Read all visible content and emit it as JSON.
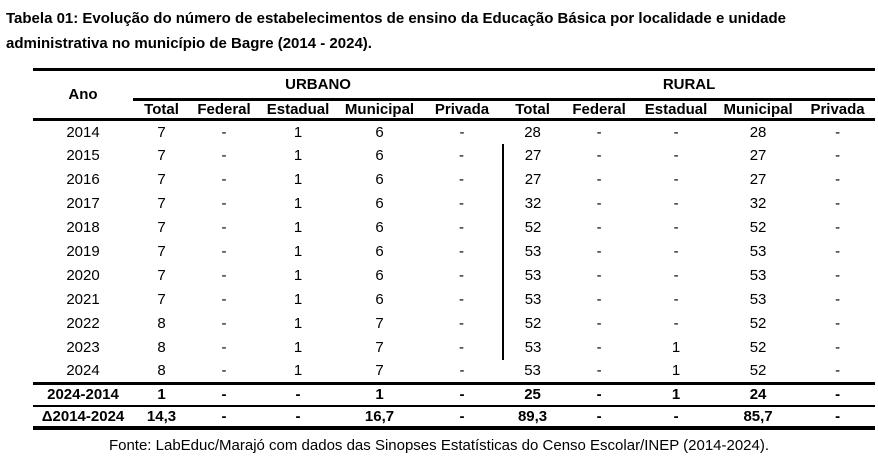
{
  "title": "Tabela 01: Evolução do número de estabelecimentos de ensino da Educação Básica por localidade e unidade administrativa no município de Bagre (2014 - 2024).",
  "table": {
    "year_header": "Ano",
    "groups": [
      {
        "label": "URBANO"
      },
      {
        "label": "RURAL"
      }
    ],
    "sub_headers": [
      "Total",
      "Federal",
      "Estadual",
      "Municipal",
      "Privada"
    ],
    "rows": [
      {
        "year": "2014",
        "values": [
          "7",
          "-",
          "1",
          "6",
          "-",
          "28",
          "-",
          "-",
          "28",
          "-"
        ]
      },
      {
        "year": "2015",
        "values": [
          "7",
          "-",
          "1",
          "6",
          "-",
          "27",
          "-",
          "-",
          "27",
          "-"
        ]
      },
      {
        "year": "2016",
        "values": [
          "7",
          "-",
          "1",
          "6",
          "-",
          "27",
          "-",
          "-",
          "27",
          "-"
        ]
      },
      {
        "year": "2017",
        "values": [
          "7",
          "-",
          "1",
          "6",
          "-",
          "32",
          "-",
          "-",
          "32",
          "-"
        ]
      },
      {
        "year": "2018",
        "values": [
          "7",
          "-",
          "1",
          "6",
          "-",
          "52",
          "-",
          "-",
          "52",
          "-"
        ]
      },
      {
        "year": "2019",
        "values": [
          "7",
          "-",
          "1",
          "6",
          "-",
          "53",
          "-",
          "-",
          "53",
          "-"
        ]
      },
      {
        "year": "2020",
        "values": [
          "7",
          "-",
          "1",
          "6",
          "-",
          "53",
          "-",
          "-",
          "53",
          "-"
        ]
      },
      {
        "year": "2021",
        "values": [
          "7",
          "-",
          "1",
          "6",
          "-",
          "53",
          "-",
          "-",
          "53",
          "-"
        ]
      },
      {
        "year": "2022",
        "values": [
          "8",
          "-",
          "1",
          "7",
          "-",
          "52",
          "-",
          "-",
          "52",
          "-"
        ]
      },
      {
        "year": "2023",
        "values": [
          "8",
          "-",
          "1",
          "7",
          "-",
          "53",
          "-",
          "1",
          "52",
          "-"
        ]
      },
      {
        "year": "2024",
        "values": [
          "8",
          "-",
          "1",
          "7",
          "-",
          "53",
          "-",
          "1",
          "52",
          "-"
        ]
      }
    ],
    "summary_rows": [
      {
        "label": "2024-2014",
        "values": [
          "1",
          "-",
          "-",
          "1",
          "-",
          "25",
          "-",
          "1",
          "24",
          "-"
        ]
      },
      {
        "label": "Δ2014-2024",
        "values": [
          "14,3",
          "-",
          "-",
          "16,7",
          "-",
          "89,3",
          "-",
          "-",
          "85,7",
          "-"
        ]
      }
    ]
  },
  "footer": "Fonte: LabEduc/Marajó com dados das Sinopses Estatísticas do Censo Escolar/INEP (2014-2024)."
}
